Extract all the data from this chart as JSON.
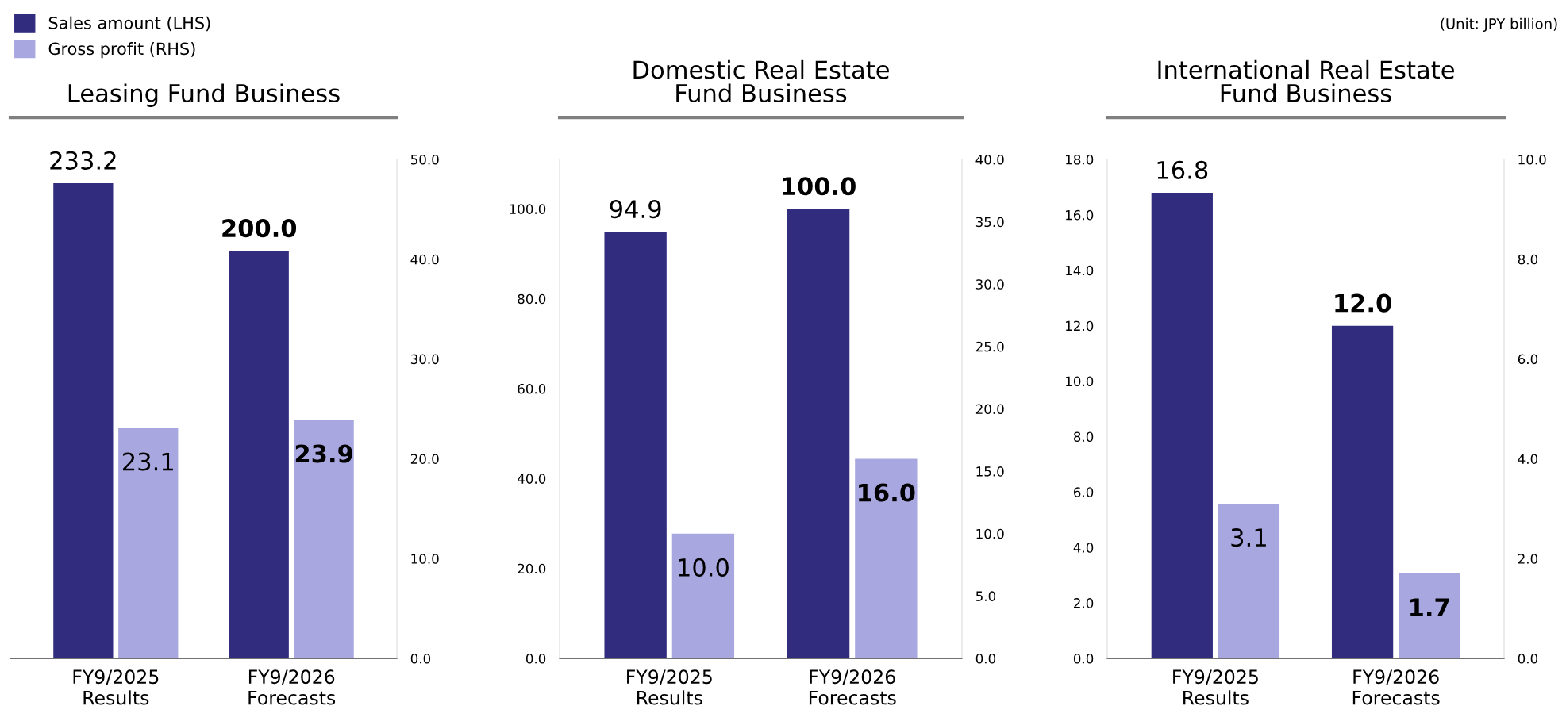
{
  "chart_data": [
    {
      "type": "bar",
      "title": "Leasing Fund Business",
      "categories": [
        "FY9/2025\nResults",
        "FY9/2026\nForecasts"
      ],
      "series": [
        {
          "name": "Sales amount (LHS)",
          "color": "#312c7e",
          "values": [
            233.2,
            200.0
          ],
          "value_labels": [
            "233.2",
            "200.0"
          ]
        },
        {
          "name": "Gross profit (RHS)",
          "color": "#a9a7e0",
          "values": [
            23.1,
            23.9
          ],
          "value_labels": [
            "23.1",
            "23.9"
          ],
          "axis": "y2"
        }
      ],
      "y2lim": [
        0,
        50
      ],
      "y2ticks": [
        {
          "value": 0,
          "label": "0.0"
        },
        {
          "value": 10,
          "label": "10.0"
        },
        {
          "value": 20,
          "label": "20.0"
        },
        {
          "value": 30,
          "label": "30.0"
        },
        {
          "value": 40,
          "label": "40.0"
        },
        {
          "value": 50,
          "label": "50.0"
        }
      ],
      "legend": "top left",
      "grid": false
    },
    {
      "type": "bar",
      "title": "Domestic Real Estate\nFund Business",
      "categories": [
        "FY9/2025\nResults",
        "FY9/2026\nForecasts"
      ],
      "series": [
        {
          "color": "#312c7e",
          "values": [
            94.9,
            100.0
          ],
          "value_labels": [
            "94.9",
            "100.0"
          ]
        },
        {
          "color": "#a9a7e0",
          "values": [
            10.0,
            16.0
          ],
          "value_labels": [
            "10.0",
            "16.0"
          ],
          "axis": "y2"
        }
      ],
      "ylim": [
        0,
        111
      ],
      "yticks": [
        {
          "value": 0,
          "label": "0.0"
        },
        {
          "value": 20,
          "label": "20.0"
        },
        {
          "value": 40,
          "label": "40.0"
        },
        {
          "value": 60,
          "label": "60.0"
        },
        {
          "value": 80,
          "label": "80.0"
        },
        {
          "value": 100,
          "label": "100.0"
        }
      ],
      "y2lim": [
        0,
        40
      ],
      "y2ticks": [
        {
          "value": 0,
          "label": "0.0"
        },
        {
          "value": 5,
          "label": "5.0"
        },
        {
          "value": 10,
          "label": "10.0"
        },
        {
          "value": 15,
          "label": "15.0"
        },
        {
          "value": 20,
          "label": "20.0"
        },
        {
          "value": 25,
          "label": "25.0"
        },
        {
          "value": 30,
          "label": "30.0"
        },
        {
          "value": 35,
          "label": "35.0"
        },
        {
          "value": 40,
          "label": "40.0"
        }
      ],
      "grid": false
    },
    {
      "type": "bar",
      "title": "International Real Estate\nFund Business",
      "categories": [
        "FY9/2025\nResults",
        "FY9/2026\nForecasts"
      ],
      "series": [
        {
          "color": "#312c7e",
          "values": [
            16.8,
            12.0
          ],
          "value_labels": [
            "16.8",
            "12.0"
          ]
        },
        {
          "color": "#a9a7e0",
          "values": [
            3.1,
            1.7
          ],
          "value_labels": [
            "3.1",
            "1.7"
          ],
          "axis": "y2"
        }
      ],
      "ylim": [
        0,
        18
      ],
      "yticks": [
        {
          "value": 0,
          "label": "0.0"
        },
        {
          "value": 2,
          "label": "2.0"
        },
        {
          "value": 4,
          "label": "4.0"
        },
        {
          "value": 6,
          "label": "6.0"
        },
        {
          "value": 8,
          "label": "8.0"
        },
        {
          "value": 10,
          "label": "10.0"
        },
        {
          "value": 12,
          "label": "12.0"
        },
        {
          "value": 14,
          "label": "14.0"
        },
        {
          "value": 16,
          "label": "16.0"
        },
        {
          "value": 18,
          "label": "18.0"
        }
      ],
      "y2lim": [
        0,
        10
      ],
      "y2ticks": [
        {
          "value": 0,
          "label": "0.0"
        },
        {
          "value": 2,
          "label": "2.0"
        },
        {
          "value": 4,
          "label": "4.0"
        },
        {
          "value": 6,
          "label": "6.0"
        },
        {
          "value": 8,
          "label": "8.0"
        },
        {
          "value": 10,
          "label": "10.0"
        }
      ],
      "grid": false,
      "annotations": [
        "(Unit: JPY billion)"
      ]
    }
  ]
}
